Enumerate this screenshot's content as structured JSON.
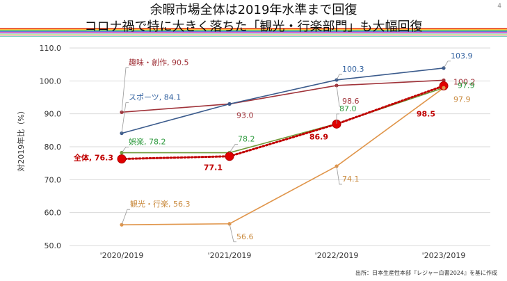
{
  "page_number": "4",
  "title_line1": "余暇市場全体は2019年水準まで回復",
  "title_line2": "コロナ禍で特に大きく落ちた「観光・行楽部門」も大幅回復",
  "source": "出所：日本生産性本部『レジャー白書2024』を基に作成",
  "stripe_colors": [
    "#e8413c",
    "#f08a3c",
    "#f6c342",
    "#8cc63f",
    "#3cb4e5",
    "#6f6fd0",
    "#d15fc9",
    "#f4a3c4",
    "#9ad9e8",
    "#c8e6a0",
    "#f9d98b",
    "#e0b0ff",
    "#7fd3c5"
  ],
  "chart_data": {
    "type": "line",
    "categories": [
      "'2020/2019",
      "'2021/2019",
      "'2022/2019",
      "'2023/2019"
    ],
    "ylabel": "対2019年比（%）",
    "ylim": [
      50,
      110
    ],
    "yticks": [
      "50.0",
      "60.0",
      "70.0",
      "80.0",
      "90.0",
      "100.0",
      "110.0"
    ],
    "grid": true,
    "series": [
      {
        "name": "趣味・創作",
        "color": "#a0333a",
        "style": "solid",
        "values": [
          90.5,
          93.0,
          98.6,
          100.2
        ],
        "labels": [
          "趣味・創作, 90.5",
          "93.0",
          "98.6",
          "100.2"
        ],
        "label_colors": [
          "#a0333a",
          "#a0333a",
          "#a0333a",
          "#a0333a"
        ]
      },
      {
        "name": "スポーツ",
        "color": "#3b5b8c",
        "style": "solid",
        "values": [
          84.1,
          93.0,
          100.3,
          103.9
        ],
        "labels": [
          "スポーツ, 84.1",
          "",
          "100.3",
          "103.9"
        ],
        "label_colors": [
          "#2f5f9e",
          "#2f5f9e",
          "#2f5f9e",
          "#2f5f9e"
        ]
      },
      {
        "name": "娯楽",
        "color": "#6f9a3a",
        "style": "solid",
        "values": [
          78.2,
          78.2,
          87.0,
          97.9
        ],
        "labels": [
          "娯楽, 78.2",
          "78.2",
          "87.0",
          "97.9"
        ],
        "label_colors": [
          "#2e9a3e",
          "#2e9a3e",
          "#2e9a3e",
          "#2e9a3e"
        ]
      },
      {
        "name": "全体",
        "color": "#c00000",
        "style": "dotted-big-markers",
        "values": [
          76.3,
          77.1,
          86.9,
          98.5
        ],
        "labels": [
          "全体, 76.3",
          "77.1",
          "86.9",
          "98.5"
        ],
        "label_colors": [
          "#c00000",
          "#c00000",
          "#c00000",
          "#c00000"
        ]
      },
      {
        "name": "観光・行楽",
        "color": "#e0954a",
        "style": "solid",
        "values": [
          56.3,
          56.6,
          74.1,
          97.9
        ],
        "labels": [
          "観光・行楽, 56.3",
          "56.6",
          "74.1",
          "97.9"
        ],
        "label_colors": [
          "#c98a3e",
          "#c98a3e",
          "#c98a3e",
          "#c98a3e"
        ]
      }
    ]
  }
}
